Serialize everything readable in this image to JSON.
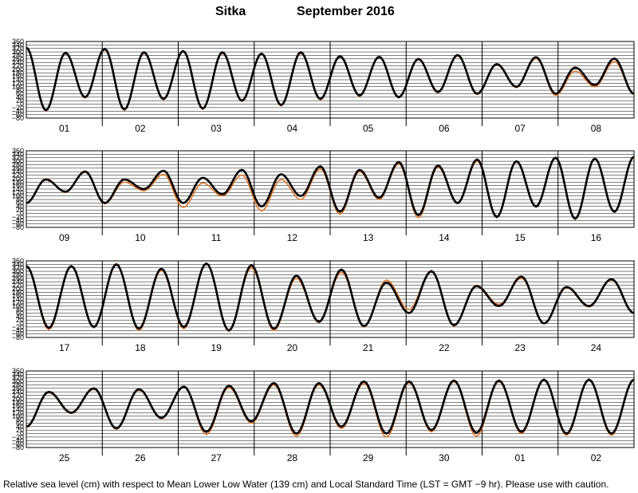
{
  "title": {
    "station": "Sitka",
    "month_year": "September   2016"
  },
  "footer": "Relative sea level (cm) with respect to Mean Lower Low Water (139 cm) and Local Standard Time (LST = GMT −9 hr). Please use with caution.",
  "colors": {
    "observed": "#000000",
    "predicted": "#e07020",
    "grid": "#000000"
  },
  "chart_data": {
    "type": "line",
    "ylim": [
      -80,
      360
    ],
    "y_ticks": [
      -80,
      -60,
      -40,
      -20,
      0,
      20,
      40,
      60,
      80,
      100,
      120,
      140,
      160,
      180,
      200,
      220,
      240,
      260,
      280,
      300,
      320,
      340,
      360
    ],
    "y_tick_labels": [
      "−80",
      "−60",
      "−40",
      "−20",
      "0",
      "20",
      "40",
      "60",
      "80",
      "100",
      "120",
      "140",
      "160",
      "180",
      "200",
      "220",
      "240",
      "260",
      "280",
      "300",
      "320",
      "340",
      "360"
    ],
    "series_colors": [
      "#000000",
      "#e07020"
    ],
    "panels": [
      {
        "days": [
          "01",
          "02",
          "03",
          "04",
          "05",
          "06",
          "07",
          "08"
        ],
        "observed_extremes": [
          325,
          -35,
          295,
          40,
          318,
          -30,
          298,
          30,
          305,
          -25,
          298,
          20,
          290,
          -5,
          298,
          30,
          275,
          50,
          272,
          40,
          260,
          70,
          282,
          60,
          230,
          100,
          270,
          60,
          210,
          110,
          262,
          60
        ],
        "predicted_extremes": [
          320,
          -40,
          290,
          35,
          312,
          -35,
          292,
          25,
          300,
          -30,
          292,
          15,
          285,
          -10,
          292,
          25,
          270,
          45,
          268,
          35,
          255,
          65,
          278,
          55,
          225,
          95,
          262,
          50,
          190,
          100,
          245,
          55
        ]
      },
      {
        "days": [
          "09",
          "10",
          "11",
          "12",
          "13",
          "14",
          "15",
          "16"
        ],
        "observed_extremes": [
          60,
          195,
          125,
          240,
          60,
          195,
          140,
          245,
          60,
          205,
          110,
          250,
          40,
          225,
          100,
          270,
          10,
          250,
          90,
          295,
          -10,
          275,
          60,
          310,
          -20,
          300,
          40,
          320,
          -30,
          315,
          10,
          325
        ],
        "predicted_extremes": [
          55,
          200,
          120,
          245,
          55,
          180,
          130,
          225,
          35,
          175,
          100,
          220,
          15,
          195,
          80,
          255,
          -5,
          240,
          80,
          285,
          -25,
          265,
          55,
          300,
          -25,
          295,
          35,
          318,
          -35,
          312,
          5,
          320
        ]
      },
      {
        "days": [
          "17",
          "18",
          "19",
          "20",
          "21",
          "22",
          "23",
          "24"
        ],
        "observed_extremes": [
          330,
          -25,
          330,
          -20,
          340,
          -30,
          315,
          -20,
          345,
          -40,
          335,
          -30,
          275,
          10,
          310,
          -15,
          235,
          60,
          300,
          -10,
          215,
          100,
          270,
          0,
          210,
          100,
          255,
          60
        ],
        "predicted_extremes": [
          325,
          -35,
          325,
          -25,
          345,
          -40,
          305,
          -30,
          340,
          -45,
          320,
          -40,
          260,
          5,
          295,
          -20,
          250,
          80,
          305,
          -15,
          220,
          110,
          260,
          0,
          205,
          95,
          250,
          60
        ]
      },
      {
        "days": [
          "25",
          "26",
          "27",
          "28",
          "29",
          "30",
          "01",
          "02"
        ],
        "observed_extremes": [
          40,
          240,
          120,
          260,
          30,
          255,
          90,
          270,
          10,
          275,
          70,
          290,
          0,
          290,
          40,
          300,
          0,
          300,
          20,
          305,
          5,
          305,
          10,
          310,
          0,
          310,
          0,
          310
        ],
        "predicted_extremes": [
          35,
          235,
          115,
          255,
          25,
          250,
          85,
          265,
          -5,
          265,
          60,
          280,
          -15,
          280,
          30,
          290,
          -20,
          292,
          10,
          298,
          -15,
          298,
          0,
          305,
          -10,
          305,
          -10,
          305
        ]
      }
    ]
  }
}
